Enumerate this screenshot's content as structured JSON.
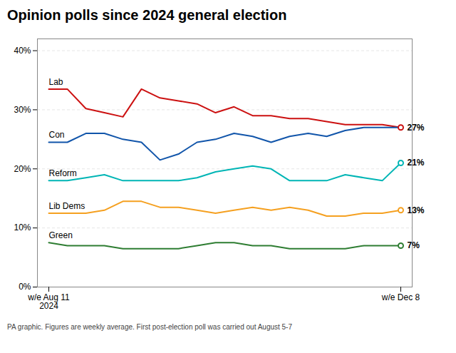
{
  "chart_data": {
    "type": "line",
    "title": "Opinion polls since 2024 general election",
    "caption": "PA graphic. Figures are weekly average. First post-election poll was carried out August 5-7",
    "categories": [
      "w/e Aug 11\n2024",
      null,
      null,
      null,
      null,
      null,
      null,
      null,
      null,
      null,
      null,
      null,
      null,
      null,
      null,
      null,
      null,
      null,
      null,
      "w/e Dec 8"
    ],
    "series": [
      {
        "name": "Lab",
        "color": "#cc1111",
        "values": [
          33.5,
          33.5,
          30.2,
          29.5,
          28.8,
          33.5,
          32.0,
          31.5,
          31.0,
          29.5,
          30.5,
          29.0,
          29.0,
          28.5,
          28.5,
          28.0,
          27.5,
          27.5,
          27.5,
          27.0
        ],
        "value_labels": [
          null,
          null,
          null,
          null,
          null,
          null,
          null,
          null,
          null,
          null,
          null,
          null,
          null,
          null,
          null,
          null,
          null,
          null,
          null,
          "27%"
        ]
      },
      {
        "name": "Con",
        "color": "#1155aa",
        "values": [
          24.5,
          24.5,
          26.0,
          26.0,
          25.0,
          24.5,
          21.5,
          22.5,
          24.5,
          25.0,
          26.0,
          25.5,
          24.5,
          25.5,
          26.0,
          25.5,
          26.5,
          27.0,
          27.0,
          27.0
        ]
      },
      {
        "name": "Reform",
        "color": "#00b5b5",
        "values": [
          18.0,
          18.0,
          18.5,
          19.0,
          18.0,
          18.0,
          18.0,
          18.0,
          18.5,
          19.5,
          20.0,
          20.5,
          20.0,
          18.0,
          18.0,
          18.0,
          19.0,
          18.5,
          18.0,
          21.0
        ],
        "value_labels": [
          null,
          null,
          null,
          null,
          null,
          null,
          null,
          null,
          null,
          null,
          null,
          null,
          null,
          null,
          null,
          null,
          null,
          null,
          null,
          "21%"
        ]
      },
      {
        "name": "Lib Dems",
        "color": "#f5a020",
        "values": [
          12.5,
          12.5,
          12.5,
          13.0,
          14.5,
          14.5,
          13.5,
          13.5,
          13.0,
          12.5,
          13.0,
          13.5,
          13.0,
          13.5,
          13.0,
          12.0,
          12.0,
          12.5,
          12.5,
          13.0
        ],
        "value_labels": [
          null,
          null,
          null,
          null,
          null,
          null,
          null,
          null,
          null,
          null,
          null,
          null,
          null,
          null,
          null,
          null,
          null,
          null,
          null,
          "13%"
        ]
      },
      {
        "name": "Green",
        "color": "#2e7d32",
        "values": [
          7.5,
          7.0,
          7.0,
          7.0,
          6.5,
          6.5,
          6.5,
          6.5,
          7.0,
          7.5,
          7.5,
          7.0,
          7.0,
          6.5,
          6.5,
          6.5,
          6.5,
          7.0,
          7.0,
          7.0
        ],
        "value_labels": [
          null,
          null,
          null,
          null,
          null,
          null,
          null,
          null,
          null,
          null,
          null,
          null,
          null,
          null,
          null,
          null,
          null,
          null,
          null,
          "7%"
        ]
      }
    ],
    "ylim": [
      0,
      42
    ],
    "yticks": [
      {
        "value": 0,
        "label": "0%"
      },
      {
        "value": 10,
        "label": "10%"
      },
      {
        "value": 20,
        "label": "20%"
      },
      {
        "value": 30,
        "label": "30%"
      },
      {
        "value": 40,
        "label": "40%"
      }
    ],
    "grid": true
  }
}
